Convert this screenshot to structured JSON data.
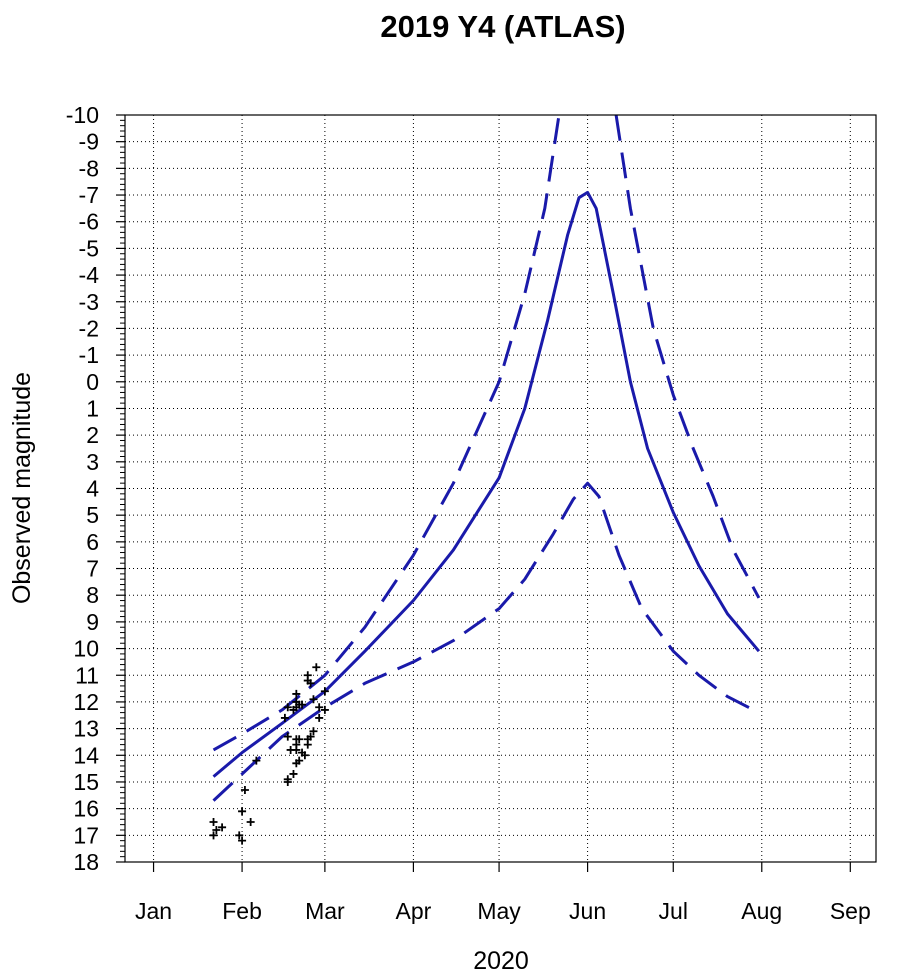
{
  "chart_data": {
    "type": "scatter",
    "title": "2019 Y4 (ATLAS)",
    "xlabel": "2020",
    "ylabel": "Observed magnitude",
    "x_unit": "date",
    "x_ticks": [
      {
        "date": "2020-01-01",
        "label": "Jan"
      },
      {
        "date": "2020-02-01",
        "label": "Feb"
      },
      {
        "date": "2020-03-01",
        "label": "Mar"
      },
      {
        "date": "2020-04-01",
        "label": "Apr"
      },
      {
        "date": "2020-05-01",
        "label": "May"
      },
      {
        "date": "2020-06-01",
        "label": "Jun"
      },
      {
        "date": "2020-07-01",
        "label": "Jul"
      },
      {
        "date": "2020-08-01",
        "label": "Aug"
      },
      {
        "date": "2020-09-01",
        "label": "Sep"
      }
    ],
    "xlim": [
      "2019-12-22",
      "2020-09-10"
    ],
    "ylim": [
      18,
      -10
    ],
    "y_inverted": true,
    "y_ticks": [
      -10,
      -9,
      -8,
      -7,
      -6,
      -5,
      -4,
      -3,
      -2,
      -1,
      0,
      1,
      2,
      3,
      4,
      5,
      6,
      7,
      8,
      9,
      10,
      11,
      12,
      13,
      14,
      15,
      16,
      17,
      18
    ],
    "grid": true,
    "colors": {
      "curves": "#1a1aaa",
      "observations": "#000000"
    },
    "series": [
      {
        "style": "dashed",
        "points": [
          [
            "2020-01-22",
            13.8
          ],
          [
            "2020-02-01",
            13.2
          ],
          [
            "2020-02-15",
            12.3
          ],
          [
            "2020-03-01",
            11.0
          ],
          [
            "2020-03-15",
            9.2
          ],
          [
            "2020-04-01",
            6.5
          ],
          [
            "2020-04-15",
            3.8
          ],
          [
            "2020-05-01",
            0.0
          ],
          [
            "2020-05-10",
            -3.3
          ],
          [
            "2020-05-17",
            -6.5
          ],
          [
            "2020-05-22",
            -10.0
          ]
        ]
      },
      {
        "style": "dashed",
        "points": [
          [
            "2020-06-11",
            -10.0
          ],
          [
            "2020-06-16",
            -6.5
          ],
          [
            "2020-06-24",
            -2.0
          ],
          [
            "2020-07-01",
            0.5
          ],
          [
            "2020-07-08",
            2.5
          ],
          [
            "2020-07-15",
            4.3
          ],
          [
            "2020-07-22",
            6.3
          ],
          [
            "2020-07-31",
            8.1
          ]
        ]
      },
      {
        "style": "solid",
        "points": [
          [
            "2020-01-22",
            14.8
          ],
          [
            "2020-02-01",
            13.9
          ],
          [
            "2020-02-15",
            12.8
          ],
          [
            "2020-03-01",
            11.6
          ],
          [
            "2020-03-15",
            10.1
          ],
          [
            "2020-04-01",
            8.2
          ],
          [
            "2020-04-15",
            6.3
          ],
          [
            "2020-05-01",
            3.6
          ],
          [
            "2020-05-10",
            1.0
          ],
          [
            "2020-05-18",
            -2.3
          ],
          [
            "2020-05-25",
            -5.5
          ],
          [
            "2020-05-29",
            -6.9
          ],
          [
            "2020-06-01",
            -7.1
          ],
          [
            "2020-06-04",
            -6.5
          ],
          [
            "2020-06-10",
            -3.3
          ],
          [
            "2020-06-16",
            0.0
          ],
          [
            "2020-06-22",
            2.5
          ],
          [
            "2020-07-01",
            4.9
          ],
          [
            "2020-07-10",
            6.9
          ],
          [
            "2020-07-20",
            8.7
          ],
          [
            "2020-07-31",
            10.1
          ]
        ]
      },
      {
        "style": "dashed",
        "points": [
          [
            "2020-01-22",
            15.7
          ],
          [
            "2020-02-01",
            14.7
          ],
          [
            "2020-02-15",
            13.3
          ],
          [
            "2020-03-01",
            12.2
          ],
          [
            "2020-03-15",
            11.3
          ],
          [
            "2020-04-01",
            10.5
          ],
          [
            "2020-04-15",
            9.7
          ],
          [
            "2020-05-01",
            8.5
          ],
          [
            "2020-05-10",
            7.4
          ],
          [
            "2020-05-20",
            5.7
          ],
          [
            "2020-05-27",
            4.4
          ],
          [
            "2020-06-01",
            3.8
          ],
          [
            "2020-06-05",
            4.3
          ],
          [
            "2020-06-12",
            6.5
          ],
          [
            "2020-06-20",
            8.5
          ],
          [
            "2020-07-01",
            10.1
          ],
          [
            "2020-07-10",
            11.0
          ],
          [
            "2020-07-20",
            11.8
          ],
          [
            "2020-07-31",
            12.4
          ]
        ]
      }
    ],
    "observations": [
      [
        "2020-01-22",
        16.5
      ],
      [
        "2020-01-22",
        17.0
      ],
      [
        "2020-01-23",
        16.8
      ],
      [
        "2020-01-25",
        16.7
      ],
      [
        "2020-01-31",
        17.0
      ],
      [
        "2020-02-01",
        17.2
      ],
      [
        "2020-02-01",
        16.1
      ],
      [
        "2020-02-02",
        15.3
      ],
      [
        "2020-02-04",
        16.5
      ],
      [
        "2020-02-06",
        14.2
      ],
      [
        "2020-02-16",
        12.6
      ],
      [
        "2020-02-17",
        12.2
      ],
      [
        "2020-02-17",
        13.3
      ],
      [
        "2020-02-17",
        14.9
      ],
      [
        "2020-02-17",
        15.0
      ],
      [
        "2020-02-18",
        13.8
      ],
      [
        "2020-02-19",
        12.3
      ],
      [
        "2020-02-19",
        14.7
      ],
      [
        "2020-02-20",
        11.7
      ],
      [
        "2020-02-20",
        12.0
      ],
      [
        "2020-02-20",
        12.2
      ],
      [
        "2020-02-20",
        13.4
      ],
      [
        "2020-02-20",
        13.6
      ],
      [
        "2020-02-20",
        13.8
      ],
      [
        "2020-02-20",
        14.3
      ],
      [
        "2020-02-21",
        12.1
      ],
      [
        "2020-02-21",
        13.4
      ],
      [
        "2020-02-21",
        14.2
      ],
      [
        "2020-02-22",
        12.1
      ],
      [
        "2020-02-22",
        13.9
      ],
      [
        "2020-02-23",
        14.0
      ],
      [
        "2020-02-24",
        11.0
      ],
      [
        "2020-02-24",
        11.2
      ],
      [
        "2020-02-24",
        13.4
      ],
      [
        "2020-02-24",
        13.6
      ],
      [
        "2020-02-25",
        11.3
      ],
      [
        "2020-02-25",
        13.3
      ],
      [
        "2020-02-26",
        11.9
      ],
      [
        "2020-02-26",
        13.1
      ],
      [
        "2020-02-27",
        10.7
      ],
      [
        "2020-02-28",
        12.2
      ],
      [
        "2020-02-28",
        12.6
      ],
      [
        "2020-03-01",
        11.6
      ],
      [
        "2020-03-01",
        12.3
      ]
    ]
  }
}
